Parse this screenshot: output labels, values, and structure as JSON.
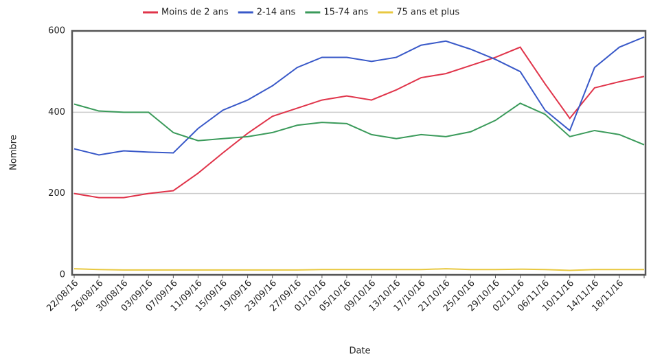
{
  "chart_data": {
    "type": "line",
    "xlabel": "Date",
    "ylabel": "Nombre",
    "categories": [
      "22/08/16",
      "26/08/16",
      "30/08/16",
      "03/09/16",
      "07/09/16",
      "11/09/16",
      "15/09/16",
      "19/09/16",
      "23/09/16",
      "27/09/16",
      "01/10/16",
      "05/10/16",
      "09/10/16",
      "13/10/16",
      "17/10/16",
      "21/10/16",
      "25/10/16",
      "29/10/16",
      "02/11/16",
      "06/11/16",
      "10/11/16",
      "14/11/16",
      "18/11/16",
      null
    ],
    "series": [
      {
        "name": "Moins de 2 ans",
        "color": "#e0344a",
        "values": [
          200,
          190,
          190,
          200,
          207,
          250,
          300,
          348,
          390,
          410,
          430,
          440,
          430,
          455,
          485,
          495,
          515,
          535,
          560,
          470,
          385,
          460,
          475,
          488
        ]
      },
      {
        "name": "2-14 ans",
        "color": "#3858c8",
        "values": [
          310,
          295,
          305,
          302,
          300,
          360,
          405,
          430,
          465,
          510,
          535,
          535,
          525,
          535,
          565,
          575,
          555,
          530,
          500,
          405,
          355,
          510,
          560,
          585
        ]
      },
      {
        "name": "15-74 ans",
        "color": "#3a9a5a",
        "values": [
          420,
          403,
          400,
          400,
          350,
          330,
          335,
          340,
          350,
          368,
          375,
          372,
          345,
          335,
          345,
          340,
          352,
          380,
          422,
          395,
          340,
          355,
          345,
          320
        ]
      },
      {
        "name": "75 ans et plus",
        "color": "#e8c840",
        "values": [
          15,
          13,
          12,
          12,
          12,
          12,
          12,
          12,
          12,
          12,
          13,
          13,
          13,
          13,
          13,
          15,
          13,
          13,
          14,
          13,
          11,
          13,
          13,
          13
        ]
      }
    ],
    "ylim": [
      0,
      600
    ],
    "yticks": [
      0,
      200,
      400,
      600
    ],
    "grid": true,
    "legend": "top"
  }
}
